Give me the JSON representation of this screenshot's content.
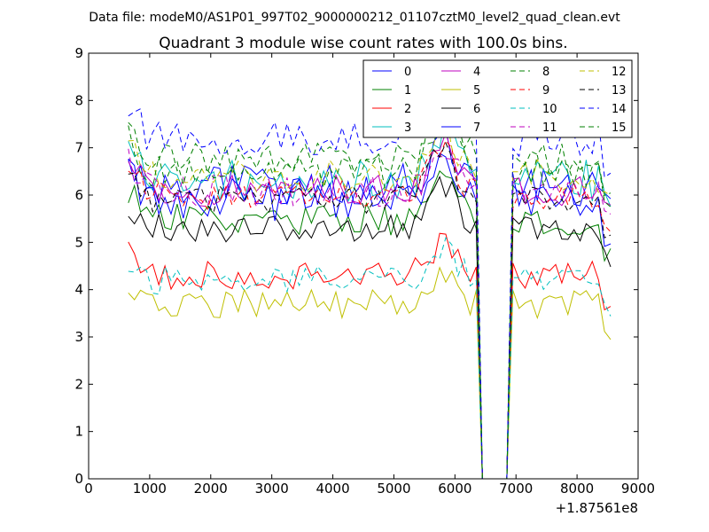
{
  "chart_data": {
    "type": "line",
    "suptitle": "Data file: modeM0/AS1P01_997T02_9000000212_01107cztM0_level2_quad_clean.evt",
    "title": "Quadrant 3 module wise count rates with 100.0s bins.",
    "xlabel": "",
    "ylabel": "",
    "x_offset_label": "+1.87561e8",
    "xlim": [
      0,
      9000
    ],
    "ylim": [
      0,
      9
    ],
    "xticks": [
      0,
      1000,
      2000,
      3000,
      4000,
      5000,
      6000,
      7000,
      8000,
      9000
    ],
    "yticks": [
      0,
      1,
      2,
      3,
      4,
      5,
      6,
      7,
      8,
      9
    ],
    "grid": false,
    "legend_position": "top-right",
    "legend_columns": 4,
    "series": [
      {
        "name": "0",
        "color": "#0000ff",
        "dash": "solid",
        "base": 6.2,
        "amp": 0.45,
        "seed": 1
      },
      {
        "name": "1",
        "color": "#008000",
        "dash": "solid",
        "base": 5.5,
        "amp": 0.35,
        "seed": 2
      },
      {
        "name": "2",
        "color": "#ff0000",
        "dash": "solid",
        "base": 4.3,
        "amp": 0.3,
        "seed": 3
      },
      {
        "name": "3",
        "color": "#00bfbf",
        "dash": "solid",
        "base": 6.3,
        "amp": 0.45,
        "seed": 4
      },
      {
        "name": "4",
        "color": "#bf00bf",
        "dash": "solid",
        "base": 6.1,
        "amp": 0.35,
        "seed": 5
      },
      {
        "name": "5",
        "color": "#bfbf00",
        "dash": "solid",
        "base": 3.7,
        "amp": 0.3,
        "seed": 6
      },
      {
        "name": "6",
        "color": "#000000",
        "dash": "solid",
        "base": 5.3,
        "amp": 0.3,
        "seed": 7
      },
      {
        "name": "7",
        "color": "#0000ff",
        "dash": "solid",
        "base": 5.9,
        "amp": 0.45,
        "seed": 8
      },
      {
        "name": "8",
        "color": "#008000",
        "dash": "dashed",
        "base": 6.8,
        "amp": 0.35,
        "seed": 9
      },
      {
        "name": "9",
        "color": "#ff0000",
        "dash": "dashed",
        "base": 6.0,
        "amp": 0.3,
        "seed": 10
      },
      {
        "name": "10",
        "color": "#00bfbf",
        "dash": "dashed",
        "base": 4.2,
        "amp": 0.3,
        "seed": 11
      },
      {
        "name": "11",
        "color": "#bf00bf",
        "dash": "dashed",
        "base": 6.1,
        "amp": 0.35,
        "seed": 12
      },
      {
        "name": "12",
        "color": "#bfbf00",
        "dash": "dashed",
        "base": 6.4,
        "amp": 0.35,
        "seed": 13
      },
      {
        "name": "13",
        "color": "#000000",
        "dash": "dashed",
        "base": 5.9,
        "amp": 0.3,
        "seed": 14
      },
      {
        "name": "14",
        "color": "#0000ff",
        "dash": "dashed",
        "base": 7.2,
        "amp": 0.4,
        "seed": 15
      },
      {
        "name": "15",
        "color": "#008000",
        "dash": "dashed",
        "base": 6.5,
        "amp": 0.35,
        "seed": 16
      }
    ],
    "time_range": [
      650,
      8550
    ],
    "bin_width": 100,
    "gap": {
      "start": 6400,
      "end": 6850,
      "value": 0
    },
    "bump": {
      "center": 5800,
      "height": 1.0,
      "width": 300
    }
  }
}
